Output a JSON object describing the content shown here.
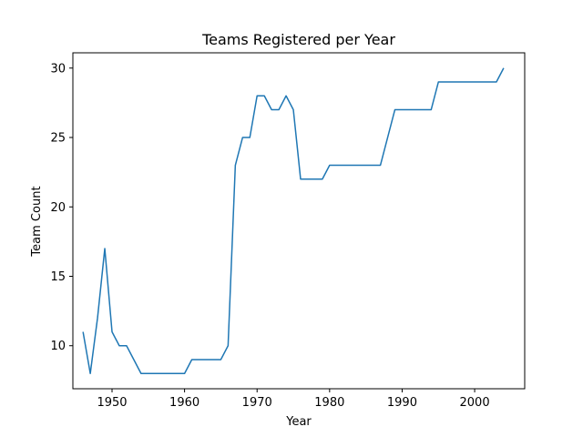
{
  "chart_data": {
    "type": "line",
    "title": "Teams Registered per Year",
    "xlabel": "Year",
    "ylabel": "Team Count",
    "xlim": [
      1944.6,
      2006.9
    ],
    "ylim": [
      6.9,
      31.1
    ],
    "xticks": [
      1950,
      1960,
      1970,
      1980,
      1990,
      2000
    ],
    "yticks": [
      10,
      15,
      20,
      25,
      30
    ],
    "grid": false,
    "series": [
      {
        "color": "#1f77b4",
        "x": [
          1946,
          1947,
          1948,
          1949,
          1950,
          1951,
          1952,
          1953,
          1954,
          1955,
          1956,
          1957,
          1958,
          1959,
          1960,
          1961,
          1962,
          1963,
          1964,
          1965,
          1966,
          1967,
          1968,
          1969,
          1970,
          1971,
          1972,
          1973,
          1974,
          1975,
          1976,
          1977,
          1978,
          1979,
          1980,
          1981,
          1982,
          1983,
          1984,
          1985,
          1986,
          1987,
          1988,
          1989,
          1990,
          1991,
          1992,
          1993,
          1994,
          1995,
          1996,
          1997,
          1998,
          1999,
          2000,
          2001,
          2002,
          2003,
          2004
        ],
        "y": [
          11,
          8,
          12,
          17,
          11,
          10,
          10,
          9,
          8,
          8,
          8,
          8,
          8,
          8,
          8,
          9,
          9,
          9,
          9,
          9,
          10,
          23,
          25,
          25,
          28,
          28,
          27,
          27,
          28,
          27,
          22,
          22,
          22,
          22,
          23,
          23,
          23,
          23,
          23,
          23,
          23,
          23,
          25,
          27,
          27,
          27,
          27,
          27,
          27,
          29,
          29,
          29,
          29,
          29,
          29,
          29,
          29,
          29,
          30
        ]
      }
    ]
  }
}
